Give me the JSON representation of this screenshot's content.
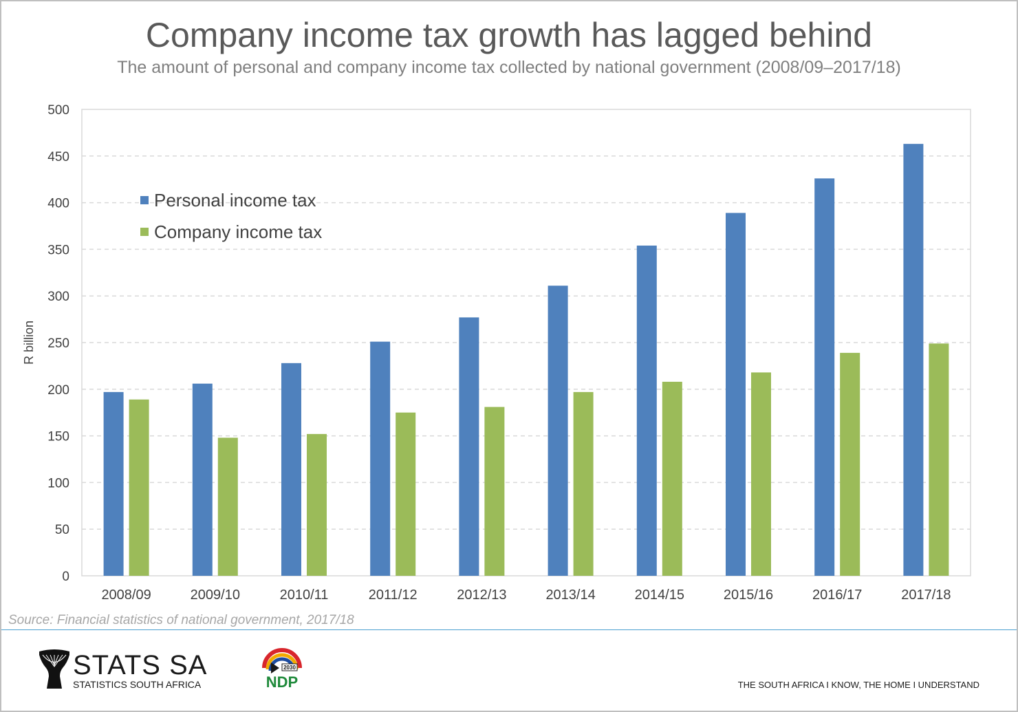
{
  "title": "Company income tax growth has lagged behind",
  "subtitle": "The amount of personal and company income tax collected by national government (2008/09–2017/18)",
  "source": "Source: Financial statistics of national government, 2017/18",
  "footer": {
    "stats_name": "STATS SA",
    "stats_sub": "STATISTICS SOUTH AFRICA",
    "ndp_year": "2030",
    "ndp_name": "NDP",
    "tagline": "THE SOUTH AFRICA I KNOW, THE HOME I UNDERSTAND"
  },
  "colors": {
    "personal": "#4f81bd",
    "company": "#9bbb59",
    "grid": "#d9d9d9",
    "axis_text": "#404040"
  },
  "chart_data": {
    "type": "bar",
    "ylabel": "R billion",
    "xlabel": "",
    "ylim": [
      0,
      500
    ],
    "yticks": [
      0,
      50,
      100,
      150,
      200,
      250,
      300,
      350,
      400,
      450,
      500
    ],
    "grid": true,
    "legend_position": "top-left",
    "categories": [
      "2008/09",
      "2009/10",
      "2010/11",
      "2011/12",
      "2012/13",
      "2013/14",
      "2014/15",
      "2015/16",
      "2016/17",
      "2017/18"
    ],
    "series": [
      {
        "name": "Personal income tax",
        "color": "#4f81bd",
        "values": [
          197,
          206,
          228,
          251,
          277,
          311,
          354,
          389,
          426,
          463
        ]
      },
      {
        "name": "Company income tax",
        "color": "#9bbb59",
        "values": [
          189,
          148,
          152,
          175,
          181,
          197,
          208,
          218,
          239,
          249
        ]
      }
    ]
  }
}
